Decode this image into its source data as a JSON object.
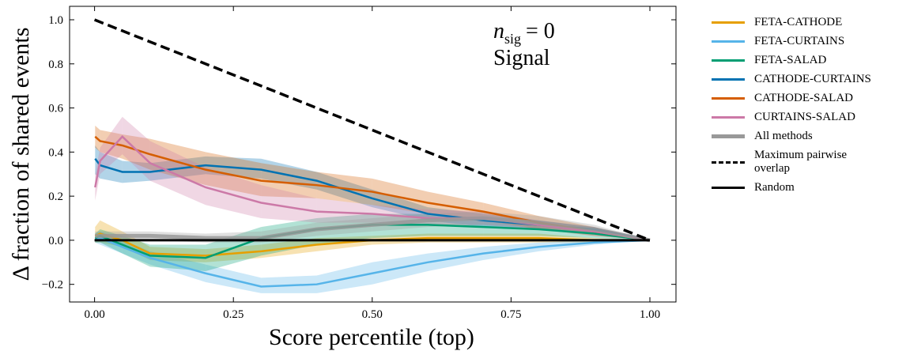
{
  "chart_data": {
    "type": "line",
    "xlabel": "Score percentile (top)",
    "ylabel": "Δ fraction of shared events",
    "annotation": {
      "symbol": "n",
      "subscript": "sig",
      "equation": "= 0",
      "text": "Signal"
    },
    "x": [
      0.001,
      0.01,
      0.05,
      0.1,
      0.2,
      0.3,
      0.4,
      0.5,
      0.6,
      0.7,
      0.8,
      0.9,
      1.0
    ],
    "xlim": [
      -0.045,
      1.047
    ],
    "ylim": [
      -0.28,
      1.061
    ],
    "xticks": [
      {
        "value": 0,
        "label": "0.00"
      },
      {
        "value": 0.25,
        "label": "0.25"
      },
      {
        "value": 0.5,
        "label": "0.50"
      },
      {
        "value": 0.75,
        "label": "0.75"
      },
      {
        "value": 1,
        "label": "1.00"
      }
    ],
    "yticks": [
      {
        "value": -0.2,
        "label": "−0.2"
      },
      {
        "value": 0,
        "label": "0.0"
      },
      {
        "value": 0.2,
        "label": "0.2"
      },
      {
        "value": 0.4,
        "label": "0.4"
      },
      {
        "value": 0.6,
        "label": "0.6"
      },
      {
        "value": 0.8,
        "label": "0.8"
      },
      {
        "value": 1,
        "label": "1.0"
      }
    ],
    "series": [
      {
        "name": "FETA-CATHODE",
        "color": "#E69F00",
        "width": 2.5,
        "values": [
          0.02,
          0.03,
          0.0,
          -0.06,
          -0.07,
          -0.05,
          -0.02,
          0.0,
          0.01,
          0.01,
          0.01,
          0.0,
          0.0
        ],
        "lower": [
          -0.01,
          -0.01,
          -0.03,
          -0.09,
          -0.1,
          -0.08,
          -0.05,
          -0.02,
          -0.01,
          -0.01,
          -0.01,
          -0.01,
          0.0
        ],
        "upper": [
          0.06,
          0.09,
          0.04,
          -0.03,
          -0.04,
          -0.02,
          0.01,
          0.02,
          0.03,
          0.03,
          0.03,
          0.01,
          0.0
        ]
      },
      {
        "name": "FETA-CURTAINS",
        "color": "#56B4E9",
        "width": 2.5,
        "values": [
          0.01,
          0.01,
          -0.03,
          -0.08,
          -0.15,
          -0.21,
          -0.2,
          -0.15,
          -0.1,
          -0.06,
          -0.03,
          -0.01,
          0.0
        ],
        "lower": [
          -0.01,
          -0.02,
          -0.06,
          -0.11,
          -0.19,
          -0.24,
          -0.24,
          -0.2,
          -0.14,
          -0.09,
          -0.05,
          -0.02,
          0.0
        ],
        "upper": [
          0.03,
          0.04,
          0.0,
          -0.05,
          -0.11,
          -0.17,
          -0.16,
          -0.1,
          -0.06,
          -0.03,
          -0.01,
          0.0,
          0.0
        ]
      },
      {
        "name": "FETA-SALAD",
        "color": "#009E73",
        "width": 2.5,
        "values": [
          0.01,
          0.02,
          -0.02,
          -0.07,
          -0.08,
          0.01,
          0.05,
          0.07,
          0.07,
          0.06,
          0.05,
          0.03,
          0.0
        ],
        "lower": [
          -0.01,
          -0.01,
          -0.06,
          -0.12,
          -0.14,
          -0.07,
          -0.02,
          0.01,
          0.02,
          0.02,
          0.02,
          0.01,
          0.0
        ],
        "upper": [
          0.03,
          0.05,
          0.02,
          -0.02,
          -0.02,
          0.06,
          0.1,
          0.12,
          0.12,
          0.1,
          0.08,
          0.05,
          0.0
        ]
      },
      {
        "name": "CATHODE-CURTAINS",
        "color": "#0072B2",
        "width": 2.5,
        "values": [
          0.37,
          0.34,
          0.31,
          0.31,
          0.34,
          0.32,
          0.27,
          0.19,
          0.12,
          0.09,
          0.07,
          0.05,
          0.0
        ],
        "lower": [
          0.3,
          0.28,
          0.26,
          0.27,
          0.3,
          0.28,
          0.23,
          0.15,
          0.09,
          0.06,
          0.05,
          0.03,
          0.0
        ],
        "upper": [
          0.43,
          0.4,
          0.36,
          0.35,
          0.38,
          0.37,
          0.31,
          0.23,
          0.15,
          0.12,
          0.09,
          0.06,
          0.0
        ]
      },
      {
        "name": "CATHODE-SALAD",
        "color": "#D55E00",
        "width": 2.5,
        "values": [
          0.47,
          0.45,
          0.43,
          0.39,
          0.32,
          0.27,
          0.25,
          0.22,
          0.17,
          0.13,
          0.08,
          0.04,
          0.0
        ],
        "lower": [
          0.42,
          0.4,
          0.37,
          0.32,
          0.25,
          0.2,
          0.19,
          0.16,
          0.12,
          0.09,
          0.05,
          0.02,
          0.0
        ],
        "upper": [
          0.52,
          0.5,
          0.48,
          0.46,
          0.4,
          0.35,
          0.31,
          0.28,
          0.22,
          0.17,
          0.11,
          0.06,
          0.0
        ]
      },
      {
        "name": "CURTAINS-SALAD",
        "color": "#CC79A7",
        "width": 2.5,
        "values": [
          0.24,
          0.36,
          0.47,
          0.35,
          0.24,
          0.17,
          0.13,
          0.12,
          0.1,
          0.1,
          0.07,
          0.04,
          0.0
        ],
        "lower": [
          0.18,
          0.3,
          0.39,
          0.27,
          0.16,
          0.1,
          0.08,
          0.08,
          0.07,
          0.07,
          0.05,
          0.02,
          0.0
        ],
        "upper": [
          0.3,
          0.42,
          0.56,
          0.45,
          0.33,
          0.25,
          0.19,
          0.16,
          0.14,
          0.13,
          0.09,
          0.06,
          0.0
        ]
      },
      {
        "name": "All methods",
        "color": "#999999",
        "width": 5,
        "values": [
          0.02,
          0.02,
          0.02,
          0.02,
          0.01,
          0.01,
          0.05,
          0.07,
          0.09,
          0.1,
          0.08,
          0.05,
          0.0
        ],
        "lower": [
          0.0,
          0.0,
          0.0,
          0.0,
          -0.01,
          -0.01,
          0.02,
          0.04,
          0.06,
          0.07,
          0.06,
          0.03,
          0.0
        ],
        "upper": [
          0.04,
          0.04,
          0.04,
          0.04,
          0.03,
          0.04,
          0.08,
          0.1,
          0.12,
          0.13,
          0.11,
          0.07,
          0.0
        ]
      },
      {
        "name": "Maximum pairwise overlap",
        "color": "#000000",
        "width": 3.5,
        "dashed": true,
        "x": [
          0,
          1
        ],
        "values": [
          1,
          0
        ]
      },
      {
        "name": "Random",
        "color": "#000000",
        "width": 3,
        "x": [
          0,
          1
        ],
        "values": [
          0,
          0
        ]
      }
    ]
  }
}
